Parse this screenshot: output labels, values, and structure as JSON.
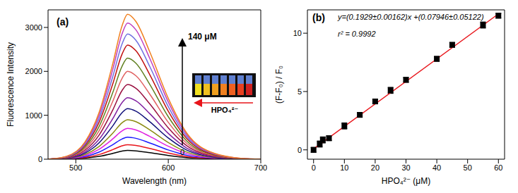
{
  "chart_data": [
    {
      "type": "line",
      "title": "(a)",
      "x_label": "Wavelength (nm)",
      "y_label": "Fluorescence Intensity",
      "x": [
        470,
        490,
        510,
        525,
        540,
        550,
        556,
        565,
        580,
        600,
        620,
        650,
        680,
        700
      ],
      "xlim": [
        470,
        700
      ],
      "xticks": [
        500,
        600,
        700
      ],
      "ylim": [
        0,
        3400
      ],
      "yticks": [
        0,
        1000,
        2000,
        3000
      ],
      "annotations": [
        "140 μM",
        "0",
        "HPO₄²⁻"
      ],
      "series": [
        {
          "color": "#000000",
          "values": [
            0,
            4,
            24,
            64,
            132,
            184,
            200,
            190,
            148,
            84,
            36,
            8,
            1,
            0
          ]
        },
        {
          "color": "#e8141a",
          "values": [
            0,
            7,
            40,
            106,
            218,
            304,
            330,
            314,
            244,
            139,
            59,
            13,
            2,
            0
          ]
        },
        {
          "color": "#1a1aff",
          "values": [
            0,
            10,
            60,
            160,
            330,
            460,
            500,
            475,
            370,
            210,
            90,
            20,
            3,
            0
          ]
        },
        {
          "color": "#e020e0",
          "values": [
            0,
            14,
            84,
            224,
            462,
            644,
            700,
            665,
            518,
            294,
            126,
            28,
            4,
            0
          ]
        },
        {
          "color": "#8a8a10",
          "values": [
            0,
            18,
            108,
            288,
            594,
            828,
            900,
            855,
            666,
            378,
            162,
            36,
            5,
            0
          ]
        },
        {
          "color": "#10107a",
          "values": [
            0,
            23,
            138,
            368,
            759,
            1058,
            1150,
            1093,
            851,
            483,
            207,
            46,
            6,
            0
          ]
        },
        {
          "color": "#8020a0",
          "values": [
            0,
            28,
            168,
            448,
            924,
            1288,
            1400,
            1330,
            1036,
            588,
            252,
            56,
            7,
            0
          ]
        },
        {
          "color": "#9a1040",
          "values": [
            0,
            34,
            204,
            544,
            1122,
            1564,
            1700,
            1615,
            1258,
            714,
            306,
            68,
            9,
            0
          ]
        },
        {
          "color": "#e06060",
          "values": [
            0,
            40,
            240,
            640,
            1320,
            1840,
            2000,
            1900,
            1480,
            840,
            360,
            80,
            10,
            0
          ]
        },
        {
          "color": "#608020",
          "values": [
            0,
            46,
            276,
            736,
            1518,
            2116,
            2300,
            2185,
            1702,
            966,
            414,
            92,
            12,
            0
          ]
        },
        {
          "color": "#c01010",
          "values": [
            0,
            52,
            312,
            832,
            1716,
            2392,
            2600,
            2470,
            1924,
            1092,
            468,
            104,
            13,
            0
          ]
        },
        {
          "color": "#7070e0",
          "values": [
            0,
            57,
            342,
            912,
            1881,
            2622,
            2850,
            2708,
            2109,
            1197,
            513,
            114,
            14,
            0
          ]
        },
        {
          "color": "#c040c0",
          "values": [
            0,
            62,
            372,
            992,
            2046,
            2852,
            3100,
            2945,
            2294,
            1302,
            558,
            124,
            16,
            0
          ]
        },
        {
          "color": "#f08020",
          "values": [
            0,
            66,
            396,
            1056,
            2178,
            3036,
            3300,
            3135,
            2442,
            1386,
            594,
            132,
            17,
            0
          ]
        }
      ]
    },
    {
      "type": "scatter",
      "title": "(b)",
      "x_label": "HPO₄²⁻ (μM)",
      "y_label": "(F-F₀) / F₀",
      "x": [
        0,
        2,
        3,
        5,
        10,
        15,
        20,
        25,
        30,
        40,
        45,
        55,
        60
      ],
      "values": [
        0,
        0.5,
        0.85,
        1.0,
        2.05,
        3.0,
        4.15,
        5.1,
        6.0,
        7.8,
        9.0,
        10.7,
        11.5
      ],
      "errors": [
        0.2,
        0.25,
        0.25,
        0.2,
        0.25,
        0.2,
        0.2,
        0.25,
        0.2,
        0.2,
        0.2,
        0.25,
        0.2
      ],
      "color": "#000000",
      "marker": "square",
      "fit": {
        "x": [
          0,
          60
        ],
        "values": [
          0.0795,
          11.6535
        ],
        "color": "#e8141a"
      },
      "xlim": [
        -2,
        62
      ],
      "xticks": [
        0,
        10,
        20,
        30,
        40,
        50,
        60
      ],
      "ylim": [
        -0.8,
        12
      ],
      "yticks": [
        0,
        5,
        10
      ],
      "annotations": [
        "y=(0.1929±0.00162)x +(0.07946±0.05122)",
        "r² = 0.9992"
      ]
    }
  ]
}
